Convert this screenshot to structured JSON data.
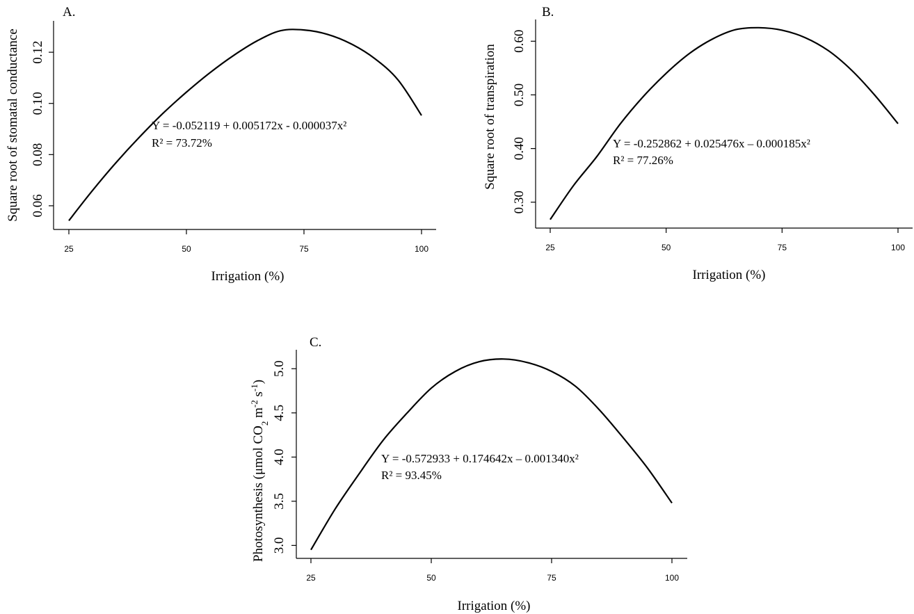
{
  "chart_data": [
    {
      "type": "line",
      "panel": "A.",
      "xlabel": "Irrigation (%)",
      "ylabel": "Square root of stomatal conductance",
      "x_ticks": [
        "25",
        "50",
        "75",
        "100"
      ],
      "y_ticks": [
        "0.06",
        "0.08",
        "0.10",
        "0.12"
      ],
      "xlim": [
        25,
        100
      ],
      "ylim": [
        0.054,
        0.129
      ],
      "equation": "Y = -0.052119 + 0.005172x - 0.000037x²",
      "r2": "R² = 73.72%",
      "series": [
        {
          "x": [
            25,
            30,
            35,
            40,
            45,
            50,
            55,
            60,
            65,
            70,
            75,
            80,
            85,
            90,
            95,
            100
          ],
          "y": [
            0.0542,
            0.0659,
            0.0768,
            0.0868,
            0.0961,
            0.1044,
            0.112,
            0.1187,
            0.1244,
            0.1284,
            0.1287,
            0.127,
            0.1233,
            0.1176,
            0.1092,
            0.0953
          ]
        }
      ]
    },
    {
      "type": "line",
      "panel": "B.",
      "xlabel": "Irrigation (%)",
      "ylabel": "Square root of transpiration",
      "x_ticks": [
        "25",
        "50",
        "75",
        "100"
      ],
      "y_ticks": [
        "0.30",
        "0.40",
        "0.50",
        "0.60"
      ],
      "xlim": [
        25,
        100
      ],
      "ylim": [
        0.266,
        0.625
      ],
      "equation": "Y = -0.252862 + 0.025476x – 0.000185x²",
      "r2": "R² = 77.26%",
      "series": [
        {
          "x": [
            25,
            30,
            35,
            40,
            45,
            50,
            55,
            60,
            65,
            70,
            75,
            80,
            85,
            90,
            95,
            100
          ],
          "y": [
            0.2677,
            0.3307,
            0.3845,
            0.4447,
            0.4962,
            0.5402,
            0.577,
            0.6041,
            0.6216,
            0.6252,
            0.6206,
            0.6066,
            0.5823,
            0.546,
            0.4993,
            0.4464
          ]
        }
      ]
    },
    {
      "type": "line",
      "panel": "C.",
      "xlabel": "Irrigation (%)",
      "ylabel_main": "Photosynthesis (μmol CO",
      "ylabel_sub1": "2",
      "ylabel_mid": " m",
      "ylabel_sup1": "-2",
      "ylabel_mid2": " s",
      "ylabel_sup2": "-1",
      "ylabel_end": ")",
      "x_ticks": [
        "25",
        "50",
        "75",
        "100"
      ],
      "y_ticks": [
        "3.0",
        "3.5",
        "4.0",
        "4.5",
        "5.0"
      ],
      "xlim": [
        25,
        100
      ],
      "ylim": [
        2.94,
        5.12
      ],
      "equation": "Y = -0.572933 + 0.174642x – 0.001340x²",
      "r2": "R² = 93.45%",
      "series": [
        {
          "x": [
            25,
            30,
            35,
            40,
            45,
            50,
            55,
            60,
            65,
            70,
            75,
            80,
            85,
            90,
            95,
            100
          ],
          "y": [
            2.95,
            3.41,
            3.81,
            4.19,
            4.5,
            4.78,
            4.97,
            5.08,
            5.11,
            5.07,
            4.97,
            4.8,
            4.53,
            4.21,
            3.87,
            3.48
          ]
        }
      ]
    }
  ]
}
